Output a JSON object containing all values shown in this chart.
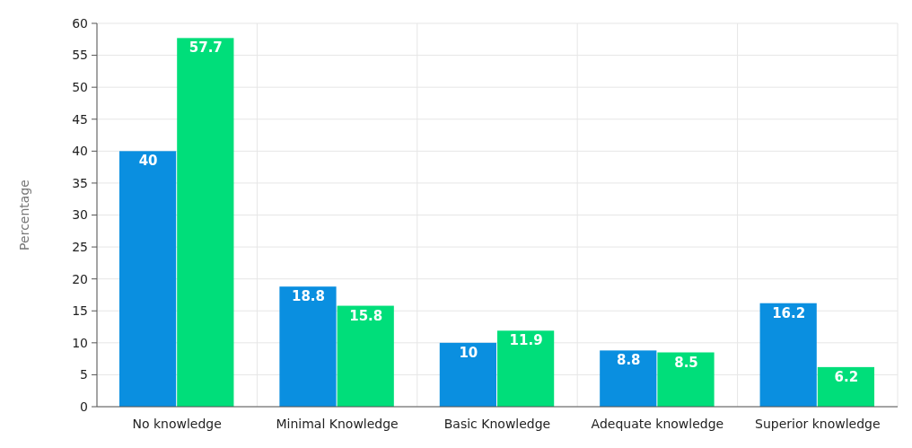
{
  "chart_data": {
    "type": "bar",
    "ylabel": "Percentage",
    "categories": [
      "No knowledge",
      "Minimal Knowledge",
      "Basic Knowledge",
      "Adequate knowledge",
      "Superior knowledge"
    ],
    "series": [
      {
        "color": "#0a8fe0",
        "values": [
          40,
          18.8,
          10,
          8.8,
          16.2
        ]
      },
      {
        "color": "#00de7a",
        "values": [
          57.7,
          15.8,
          11.9,
          8.5,
          6.2
        ]
      }
    ],
    "ylim": [
      0,
      60
    ],
    "yticks": [
      0,
      5,
      10,
      15,
      20,
      25,
      30,
      35,
      40,
      45,
      50,
      55,
      60
    ],
    "grid": true,
    "data_labels": true
  }
}
